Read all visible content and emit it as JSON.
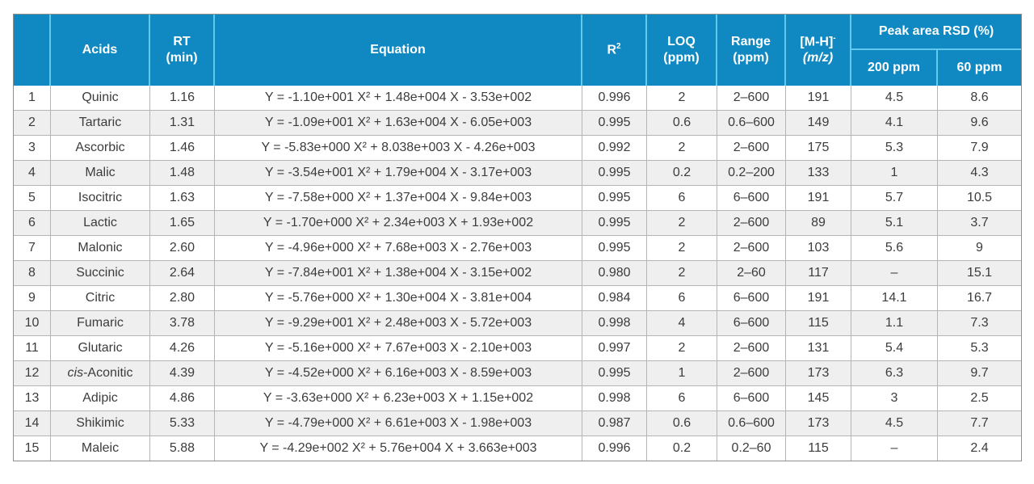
{
  "colors": {
    "header_bg": "#1088c1",
    "header_divider": "#62c9ec",
    "row_alt_bg": "#efefef",
    "grid_line": "#b5b5b5",
    "body_text": "#3c3c3c",
    "header_text": "#ffffff"
  },
  "table": {
    "headers": {
      "index": "",
      "acids": "Acids",
      "rt_line1": "RT",
      "rt_line2": "(min)",
      "equation": "Equation",
      "r2_base": "R",
      "r2_sup": "2",
      "loq_line1": "LOQ",
      "loq_line2": "(ppm)",
      "range_line1": "Range",
      "range_line2": "(ppm)",
      "mh_base": "[M-H]",
      "mh_sup": "-",
      "mh_line2": "(m/z)",
      "rsd_group": "Peak area RSD (%)",
      "rsd_200": "200 ppm",
      "rsd_60": "60 ppm"
    }
  },
  "chart_data": {
    "type": "table",
    "columns": [
      "",
      "Acids",
      "RT (min)",
      "Equation",
      "R²",
      "LOQ (ppm)",
      "Range (ppm)",
      "[M-H]⁻ (m/z)",
      "Peak area RSD (%) 200 ppm",
      "Peak area RSD (%) 60 ppm"
    ],
    "rows": [
      {
        "no": "1",
        "acid": "Quinic",
        "rt": "1.16",
        "equation": "Y = -1.10e+001 X² + 1.48e+004 X - 3.53e+002",
        "r2": "0.996",
        "loq": "2",
        "range": "2–600",
        "mz": "191",
        "rsd_200": "4.5",
        "rsd_60": "8.6"
      },
      {
        "no": "2",
        "acid": "Tartaric",
        "rt": "1.31",
        "equation": "Y = -1.09e+001 X² + 1.63e+004 X - 6.05e+003",
        "r2": "0.995",
        "loq": "0.6",
        "range": "0.6–600",
        "mz": "149",
        "rsd_200": "4.1",
        "rsd_60": "9.6"
      },
      {
        "no": "3",
        "acid": "Ascorbic",
        "rt": "1.46",
        "equation": "Y = -5.83e+000 X² + 8.038e+003 X - 4.26e+003",
        "r2": "0.992",
        "loq": "2",
        "range": "2–600",
        "mz": "175",
        "rsd_200": "5.3",
        "rsd_60": "7.9"
      },
      {
        "no": "4",
        "acid": "Malic",
        "rt": "1.48",
        "equation": "Y = -3.54e+001 X² + 1.79e+004 X - 3.17e+003",
        "r2": "0.995",
        "loq": "0.2",
        "range": "0.2–200",
        "mz": "133",
        "rsd_200": "1",
        "rsd_60": "4.3"
      },
      {
        "no": "5",
        "acid": "Isocitric",
        "rt": "1.63",
        "equation": "Y = -7.58e+000 X² + 1.37e+004 X - 9.84e+003",
        "r2": "0.995",
        "loq": "6",
        "range": "6–600",
        "mz": "191",
        "rsd_200": "5.7",
        "rsd_60": "10.5"
      },
      {
        "no": "6",
        "acid": "Lactic",
        "rt": "1.65",
        "equation": "Y = -1.70e+000 X² + 2.34e+003 X + 1.93e+002",
        "r2": "0.995",
        "loq": "2",
        "range": "2–600",
        "mz": "89",
        "rsd_200": "5.1",
        "rsd_60": "3.7"
      },
      {
        "no": "7",
        "acid": "Malonic",
        "rt": "2.60",
        "equation": "Y = -4.96e+000 X² + 7.68e+003 X - 2.76e+003",
        "r2": "0.995",
        "loq": "2",
        "range": "2–600",
        "mz": "103",
        "rsd_200": "5.6",
        "rsd_60": "9"
      },
      {
        "no": "8",
        "acid": "Succinic",
        "rt": "2.64",
        "equation": "Y = -7.84e+001 X² + 1.38e+004 X - 3.15e+002",
        "r2": "0.980",
        "loq": "2",
        "range": "2–60",
        "mz": "117",
        "rsd_200": "–",
        "rsd_60": "15.1"
      },
      {
        "no": "9",
        "acid": "Citric",
        "rt": "2.80",
        "equation": "Y = -5.76e+000 X² + 1.30e+004 X - 3.81e+004",
        "r2": "0.984",
        "loq": "6",
        "range": "6–600",
        "mz": "191",
        "rsd_200": "14.1",
        "rsd_60": "16.7"
      },
      {
        "no": "10",
        "acid": "Fumaric",
        "rt": "3.78",
        "equation": "Y = -9.29e+001 X² + 2.48e+003 X - 5.72e+003",
        "r2": "0.998",
        "loq": "4",
        "range": "6–600",
        "mz": "115",
        "rsd_200": "1.1",
        "rsd_60": "7.3"
      },
      {
        "no": "11",
        "acid": "Glutaric",
        "rt": "4.26",
        "equation": "Y = -5.16e+000 X² + 7.67e+003 X - 2.10e+003",
        "r2": "0.997",
        "loq": "2",
        "range": "2–600",
        "mz": "131",
        "rsd_200": "5.4",
        "rsd_60": "5.3"
      },
      {
        "no": "12",
        "acid": "cis-Aconitic",
        "rt": "4.39",
        "equation": "Y = -4.52e+000 X² + 6.16e+003 X - 8.59e+003",
        "r2": "0.995",
        "loq": "1",
        "range": "2–600",
        "mz": "173",
        "rsd_200": "6.3",
        "rsd_60": "9.7"
      },
      {
        "no": "13",
        "acid": "Adipic",
        "rt": "4.86",
        "equation": "Y = -3.63e+000 X² + 6.23e+003 X + 1.15e+002",
        "r2": "0.998",
        "loq": "6",
        "range": "6–600",
        "mz": "145",
        "rsd_200": "3",
        "rsd_60": "2.5"
      },
      {
        "no": "14",
        "acid": "Shikimic",
        "rt": "5.33",
        "equation": "Y = -4.79e+000 X² + 6.61e+003 X - 1.98e+003",
        "r2": "0.987",
        "loq": "0.6",
        "range": "0.6–600",
        "mz": "173",
        "rsd_200": "4.5",
        "rsd_60": "7.7"
      },
      {
        "no": "15",
        "acid": "Maleic",
        "rt": "5.88",
        "equation": "Y = -4.29e+002 X² + 5.76e+004 X + 3.663e+003",
        "r2": "0.996",
        "loq": "0.2",
        "range": "0.2–60",
        "mz": "115",
        "rsd_200": "–",
        "rsd_60": "2.4"
      }
    ]
  }
}
